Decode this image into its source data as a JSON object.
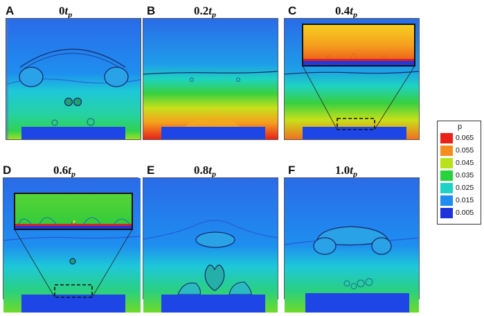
{
  "panels": [
    {
      "letter": "A",
      "coef": "0",
      "t": "t",
      "sub": "p"
    },
    {
      "letter": "B",
      "coef": "0.2",
      "t": "t",
      "sub": "p"
    },
    {
      "letter": "C",
      "coef": "0.4",
      "t": "t",
      "sub": "p"
    },
    {
      "letter": "D",
      "coef": "0.6",
      "t": "t",
      "sub": "p"
    },
    {
      "letter": "E",
      "coef": "0.8",
      "t": "t",
      "sub": "p"
    },
    {
      "letter": "F",
      "coef": "1.0",
      "t": "t",
      "sub": "p"
    }
  ],
  "legend": {
    "title": "p",
    "levels": [
      {
        "label": "0.065",
        "color": "#e8221a"
      },
      {
        "label": "0.055",
        "color": "#f58c1e"
      },
      {
        "label": "0.045",
        "color": "#b8e21a"
      },
      {
        "label": "0.035",
        "color": "#28d23c"
      },
      {
        "label": "0.025",
        "color": "#1ed2c8"
      },
      {
        "label": "0.015",
        "color": "#1e8cf0"
      },
      {
        "label": "0.005",
        "color": "#1e32dc"
      }
    ]
  },
  "colors": {
    "substrate": "#1e46e6",
    "bubble_outline": "#1a2a6a",
    "inset_dash": "#111111"
  }
}
